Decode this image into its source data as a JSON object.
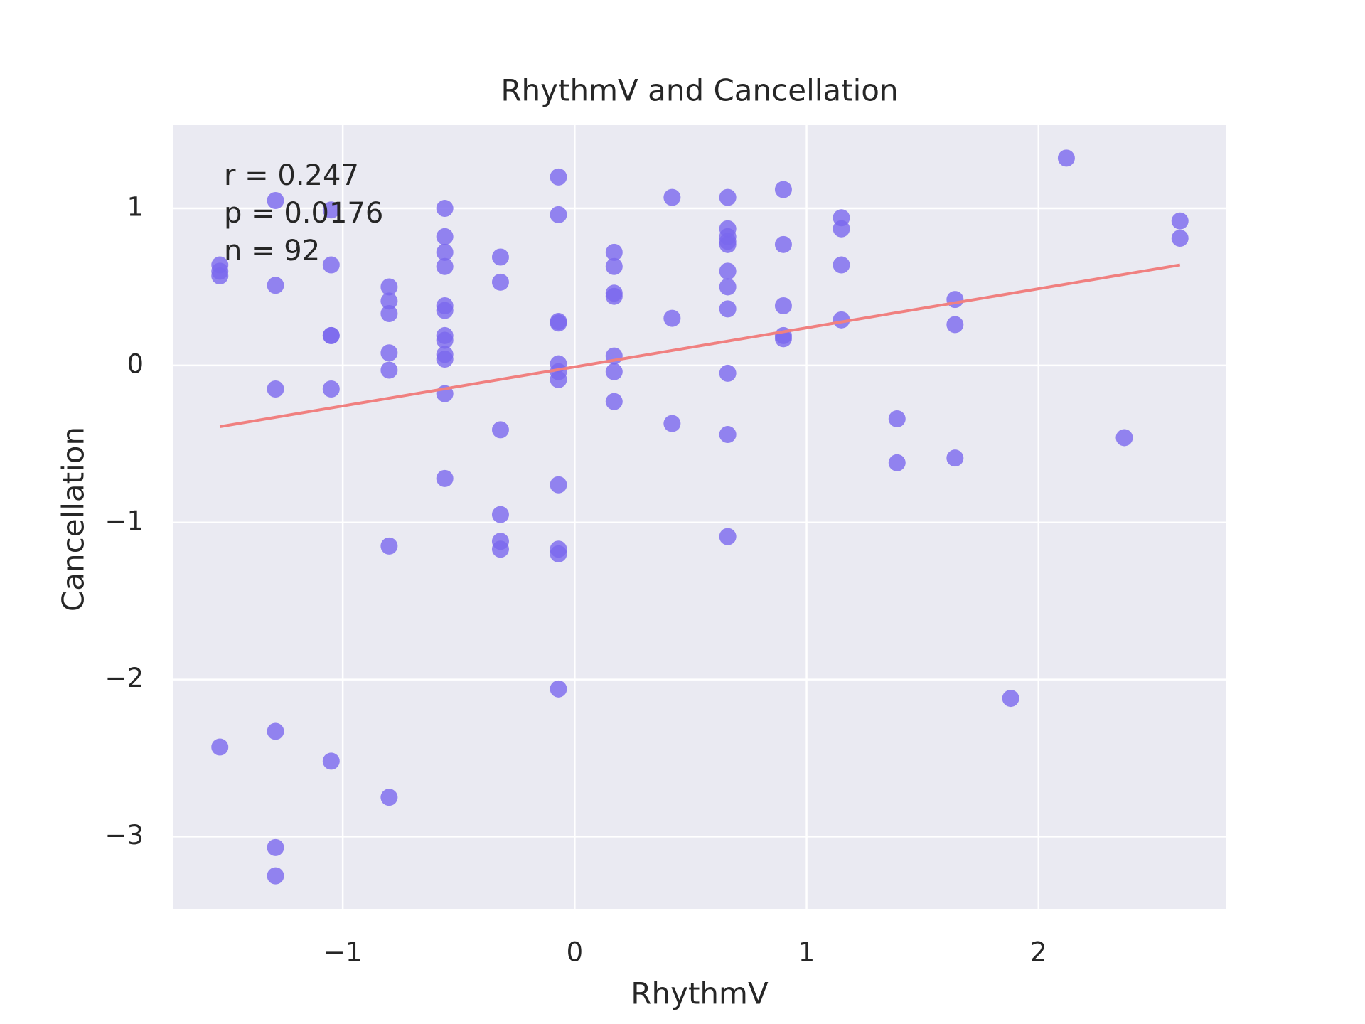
{
  "chart_data": {
    "type": "scatter",
    "title": "RhythmV and Cancellation",
    "x_label": "RhythmV",
    "y_label": "Cancellation",
    "annotations": [
      "r = 0.247",
      "p = 0.0176",
      "n = 92"
    ],
    "color": "#7b68ee",
    "x": [
      -1.53,
      -1.53,
      -1.53,
      -1.53,
      -1.29,
      -1.29,
      -1.29,
      -1.29,
      -1.29,
      -1.29,
      -1.05,
      -1.05,
      -1.05,
      -1.05,
      -1.05,
      -1.05,
      -0.8,
      -0.8,
      -0.8,
      -0.8,
      -0.8,
      -0.8,
      -0.8,
      -0.56,
      -0.56,
      -0.56,
      -0.56,
      -0.56,
      -0.56,
      -0.56,
      -0.56,
      -0.56,
      -0.56,
      -0.56,
      -0.56,
      -0.32,
      -0.32,
      -0.32,
      -0.32,
      -0.32,
      -0.32,
      -0.07,
      -0.07,
      -0.07,
      -0.07,
      -0.07,
      -0.07,
      -0.07,
      -0.07,
      -0.07,
      -0.07,
      -0.07,
      0.17,
      0.17,
      0.17,
      0.17,
      0.17,
      0.17,
      0.17,
      0.42,
      0.42,
      0.42,
      0.66,
      0.66,
      0.66,
      0.66,
      0.66,
      0.66,
      0.66,
      0.66,
      0.66,
      0.66,
      0.66,
      0.9,
      0.9,
      0.9,
      0.9,
      0.9,
      1.15,
      1.15,
      1.15,
      1.15,
      1.39,
      1.39,
      1.64,
      1.64,
      1.64,
      1.88,
      2.12,
      2.37,
      2.61,
      2.61
    ],
    "values": [
      0.64,
      0.6,
      0.57,
      -2.43,
      1.05,
      0.51,
      -0.15,
      -2.33,
      -3.07,
      -3.25,
      0.99,
      0.64,
      0.19,
      0.19,
      -0.15,
      -2.52,
      0.5,
      0.41,
      0.33,
      0.08,
      -0.03,
      -1.15,
      -2.75,
      1.0,
      0.82,
      0.72,
      0.63,
      0.38,
      0.35,
      0.19,
      0.16,
      0.07,
      0.04,
      -0.18,
      -0.72,
      0.69,
      0.53,
      -0.41,
      -0.95,
      -1.12,
      -1.17,
      1.2,
      0.96,
      0.28,
      0.27,
      0.01,
      -0.04,
      -0.09,
      -0.76,
      -1.17,
      -1.2,
      -2.06,
      0.72,
      0.63,
      0.46,
      0.44,
      0.06,
      -0.04,
      -0.23,
      1.07,
      0.3,
      -0.37,
      1.07,
      0.87,
      0.82,
      0.79,
      0.77,
      0.6,
      0.5,
      0.36,
      -0.05,
      -0.44,
      -1.09,
      1.12,
      0.77,
      0.38,
      0.19,
      0.17,
      0.94,
      0.87,
      0.64,
      0.29,
      -0.34,
      -0.62,
      0.42,
      0.26,
      -0.59,
      -2.12,
      1.32,
      -0.46,
      0.92,
      0.81
    ],
    "fit": {
      "type": "line",
      "color": "#f08080",
      "x": [
        -1.53,
        2.61
      ],
      "values": [
        -0.39,
        0.64
      ]
    },
    "xlim": [
      -1.73,
      2.81
    ],
    "ylim": [
      -3.46,
      1.53
    ],
    "xticks": [
      {
        "value": -1,
        "label": "−1"
      },
      0,
      1,
      2
    ],
    "yticks": [
      {
        "value": -3,
        "label": "−3"
      },
      {
        "value": -2,
        "label": "−2"
      },
      {
        "value": -1,
        "label": "−1"
      },
      0,
      1
    ],
    "grid": true
  }
}
